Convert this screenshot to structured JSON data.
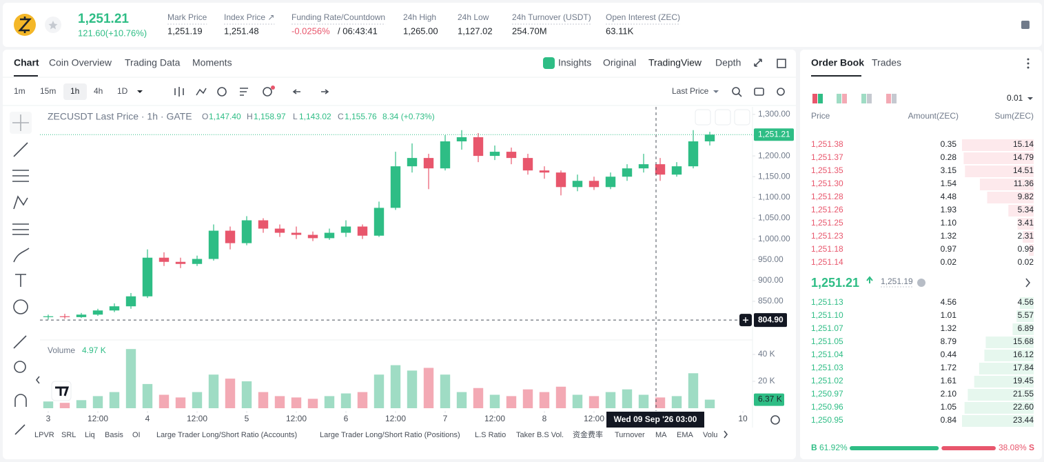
{
  "header": {
    "price": "1,251.21",
    "change": "121.60(+10.76%)",
    "stats": [
      {
        "label": "Mark Price",
        "value": "1,251.19"
      },
      {
        "label": "Index Price ↗",
        "value": "1,251.48"
      },
      {
        "label": "Funding Rate/Countdown",
        "value": "-0.0256%",
        "extra": "/ 06:43:41"
      },
      {
        "label": "24h High",
        "value": "1,265.00"
      },
      {
        "label": "24h Low",
        "value": "1,127.02"
      },
      {
        "label": "24h Turnover (USDT)",
        "value": "254.70M"
      },
      {
        "label": "Open Interest (ZEC)",
        "value": "63.11K"
      }
    ]
  },
  "tabs": [
    "Chart",
    "Coin Overview",
    "Trading Data",
    "Moments"
  ],
  "view_tabs": [
    "Insights",
    "Original",
    "TradingView",
    "Depth"
  ],
  "intervals": [
    "1m",
    "15m",
    "1h",
    "4h",
    "1D"
  ],
  "price_type": "Last Price",
  "legend": {
    "symbol": "ZECUSDT Last Price · 1h · GATE",
    "items": [
      {
        "key": "O",
        "value": "1,147.40"
      },
      {
        "key": "H",
        "value": "1,158.97"
      },
      {
        "key": "L",
        "value": "1,143.02"
      },
      {
        "key": "C",
        "value": "1,155.76"
      }
    ],
    "change": "8.34 (+0.73%)"
  },
  "chart_data": {
    "type": "candlestick",
    "candles": [
      [
        812,
        818,
        806,
        814
      ],
      [
        814,
        820,
        808,
        812
      ],
      [
        812,
        822,
        810,
        818
      ],
      [
        818,
        832,
        815,
        828
      ],
      [
        828,
        845,
        824,
        838
      ],
      [
        838,
        870,
        832,
        862
      ],
      [
        862,
        975,
        858,
        955
      ],
      [
        955,
        968,
        935,
        945
      ],
      [
        945,
        955,
        930,
        940
      ],
      [
        940,
        960,
        935,
        952
      ],
      [
        952,
        1035,
        948,
        1020
      ],
      [
        1020,
        1030,
        975,
        990
      ],
      [
        990,
        1055,
        985,
        1045
      ],
      [
        1045,
        1050,
        1015,
        1025
      ],
      [
        1025,
        1035,
        1005,
        1015
      ],
      [
        1015,
        1030,
        1000,
        1010
      ],
      [
        1010,
        1018,
        995,
        1002
      ],
      [
        1002,
        1025,
        998,
        1015
      ],
      [
        1015,
        1045,
        1005,
        1030
      ],
      [
        1030,
        1035,
        1000,
        1008
      ],
      [
        1008,
        1090,
        1005,
        1075
      ],
      [
        1075,
        1210,
        1070,
        1175
      ],
      [
        1175,
        1230,
        1160,
        1195
      ],
      [
        1195,
        1205,
        1120,
        1170
      ],
      [
        1170,
        1250,
        1165,
        1235
      ],
      [
        1235,
        1262,
        1215,
        1245
      ],
      [
        1245,
        1255,
        1185,
        1200
      ],
      [
        1200,
        1225,
        1190,
        1210
      ],
      [
        1210,
        1220,
        1180,
        1195
      ],
      [
        1195,
        1205,
        1155,
        1165
      ],
      [
        1165,
        1175,
        1145,
        1160
      ],
      [
        1160,
        1165,
        1105,
        1125
      ],
      [
        1125,
        1155,
        1115,
        1140
      ],
      [
        1140,
        1150,
        1118,
        1125
      ],
      [
        1125,
        1160,
        1120,
        1150
      ],
      [
        1150,
        1180,
        1140,
        1170
      ],
      [
        1170,
        1205,
        1160,
        1180
      ],
      [
        1180,
        1195,
        1140,
        1155
      ],
      [
        1155,
        1185,
        1150,
        1175
      ],
      [
        1175,
        1262,
        1170,
        1235
      ],
      [
        1235,
        1258,
        1225,
        1251.21
      ]
    ],
    "up_color": "#2ebd85",
    "down_color": "#e8566c",
    "xlim": [
      -0.5,
      42.5
    ],
    "xticks": [
      {
        "value": 0,
        "label": "3"
      },
      {
        "value": 3,
        "label": "12:00"
      },
      {
        "value": 6,
        "label": "4"
      },
      {
        "value": 9,
        "label": "12:00"
      },
      {
        "value": 12,
        "label": "5"
      },
      {
        "value": 15,
        "label": "12:00"
      },
      {
        "value": 18,
        "label": "6"
      },
      {
        "value": 21,
        "label": "12:00"
      },
      {
        "value": 24,
        "label": "7"
      },
      {
        "value": 27,
        "label": "12:00"
      },
      {
        "value": 30,
        "label": "8"
      },
      {
        "value": 33,
        "label": "12:00"
      },
      {
        "value": 42,
        "label": "10"
      }
    ],
    "ylim": [
      762,
      1318
    ],
    "yticks": [
      {
        "value": 850,
        "label": "850.00"
      },
      {
        "value": 900,
        "label": "900.00"
      },
      {
        "value": 950,
        "label": "950.00"
      },
      {
        "value": 1000,
        "label": "1,000.00"
      },
      {
        "value": 1050,
        "label": "1,050.00"
      },
      {
        "value": 1100,
        "label": "1,100.00"
      },
      {
        "value": 1150,
        "label": "1,150.00"
      },
      {
        "value": 1200,
        "label": "1,200.00"
      },
      {
        "value": 1250,
        "label": "1,250.00"
      },
      {
        "value": 1300,
        "label": "1,300.00"
      }
    ],
    "last_price": {
      "value": 1251.21,
      "label": "1,251.21"
    },
    "crosshair": {
      "x": 36.75,
      "x_label": "Wed 09 Sep '26   03:00",
      "y": 804.9,
      "y_label": "804.90"
    },
    "volume": {
      "title": "Volume",
      "legend_value": "4.97 K",
      "values": [
        5000,
        4000,
        6000,
        9000,
        12000,
        44000,
        18000,
        10000,
        8000,
        12000,
        25000,
        22000,
        20000,
        12000,
        9000,
        8000,
        7000,
        9000,
        11000,
        12000,
        25000,
        32000,
        28000,
        30000,
        25000,
        12000,
        15000,
        10000,
        9000,
        14000,
        12000,
        16000,
        10000,
        9000,
        12000,
        14000,
        10000,
        8000,
        9000,
        26000,
        6370
      ],
      "up_color": "#9fdcc4",
      "down_color": "#f3a9b4",
      "ylim": [
        0,
        44600
      ],
      "yticks": [
        {
          "value": 20000,
          "label": "20 K"
        },
        {
          "value": 40000,
          "label": "40 K"
        }
      ],
      "current": {
        "value": 6370,
        "label": "6.37 K"
      }
    }
  },
  "indicators": [
    "LPVR",
    "SRL",
    "Liq",
    "Basis",
    "OI",
    "Large Trader Long/Short Ratio (Accounts)",
    "Large Trader Long/Short Ratio (Positions)",
    "L.S Ratio",
    "Taker B.S Vol.",
    "资金费率",
    "Turnover",
    "MA",
    "EMA",
    "Volu"
  ],
  "order_book": {
    "tabs": [
      "Order Book",
      "Trades"
    ],
    "precision": "0.01",
    "columns": [
      "Price",
      "Amount(ZEC)",
      "Sum(ZEC)"
    ],
    "asks": [
      {
        "price": "1,251.38",
        "amount": "0.35",
        "sum": 15.14
      },
      {
        "price": "1,251.37",
        "amount": "0.28",
        "sum": 14.79
      },
      {
        "price": "1,251.35",
        "amount": "3.15",
        "sum": 14.51
      },
      {
        "price": "1,251.30",
        "amount": "1.54",
        "sum": 11.36
      },
      {
        "price": "1,251.28",
        "amount": "4.48",
        "sum": 9.82
      },
      {
        "price": "1,251.26",
        "amount": "1.93",
        "sum": 5.34
      },
      {
        "price": "1,251.25",
        "amount": "1.10",
        "sum": 3.41
      },
      {
        "price": "1,251.23",
        "amount": "1.32",
        "sum": 2.31
      },
      {
        "price": "1,251.18",
        "amount": "0.97",
        "sum": 0.99
      },
      {
        "price": "1,251.14",
        "amount": "0.02",
        "sum": 0.02
      }
    ],
    "mid_price": "1,251.21",
    "mark_price": "1,251.19",
    "bids": [
      {
        "price": "1,251.13",
        "amount": "4.56",
        "sum": 4.56
      },
      {
        "price": "1,251.10",
        "amount": "1.01",
        "sum": 5.57
      },
      {
        "price": "1,251.07",
        "amount": "1.32",
        "sum": 6.89
      },
      {
        "price": "1,251.05",
        "amount": "8.79",
        "sum": 15.68
      },
      {
        "price": "1,251.04",
        "amount": "0.44",
        "sum": 16.12
      },
      {
        "price": "1,251.03",
        "amount": "1.72",
        "sum": 17.84
      },
      {
        "price": "1,251.02",
        "amount": "1.61",
        "sum": 19.45
      },
      {
        "price": "1,250.97",
        "amount": "2.10",
        "sum": 21.55
      },
      {
        "price": "1,250.96",
        "amount": "1.05",
        "sum": 22.6,
        "sum_label": "22.60"
      },
      {
        "price": "1,250.95",
        "amount": "0.84",
        "sum": 23.44
      }
    ],
    "buy_letter": "B",
    "buy": 61.92,
    "buy_label": "61.92%",
    "sell": 38.08,
    "sell_label": "38.08%",
    "sell_letter": "S"
  }
}
